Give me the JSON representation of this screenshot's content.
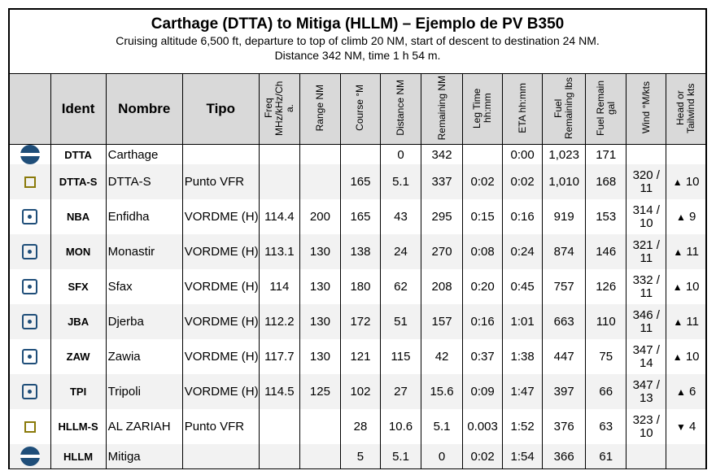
{
  "header": {
    "title": "Carthage (DTTA) to Mitiga (HLLM) – Ejemplo de PV B350",
    "line1": "Cruising altitude 6,500 ft, departure to top of climb 20 NM, start of descent to destination 24 NM.",
    "line2": "Distance 342 NM, time 1 h 54 m."
  },
  "columns": {
    "ident": "Ident",
    "nombre": "Nombre",
    "tipo": "Tipo",
    "freq": "Freq MHz/kHz/Ch a.",
    "range": "Range NM",
    "course": "Course °M",
    "distance": "Distance NM",
    "remaining": "Remaining NM",
    "leg": "Leg Time hh:mm",
    "eta": "ETA hh:mm",
    "fuel_lbs": "Fuel Remaining lbs",
    "fuel_gal": "Fuel Remain gal",
    "wind": "Wind °M/kts",
    "headtail": "Head or Tailwind kts"
  },
  "rows": [
    {
      "icon": "airport-icon",
      "ident": "DTTA",
      "nombre": "Carthage",
      "tipo": "",
      "freq": "",
      "range": "",
      "course": "",
      "distance": "0",
      "remaining": "342",
      "leg": "",
      "eta": "0:00",
      "fuel_lbs": "1,023",
      "fuel_gal": "171",
      "wind_a": "",
      "wind_b": "",
      "dir": "",
      "wkts": ""
    },
    {
      "icon": "vfr-point-icon",
      "ident": "DTTA-S",
      "nombre": "DTTA-S",
      "tipo": "Punto VFR",
      "freq": "",
      "range": "",
      "course": "165",
      "distance": "5.1",
      "remaining": "337",
      "leg": "0:02",
      "eta": "0:02",
      "fuel_lbs": "1,010",
      "fuel_gal": "168",
      "wind_a": "320 /",
      "wind_b": "11",
      "dir": "▲",
      "wkts": "10"
    },
    {
      "icon": "vordme-icon",
      "ident": "NBA",
      "nombre": "Enfidha",
      "tipo": "VORDME (H)",
      "freq": "114.4",
      "range": "200",
      "course": "165",
      "distance": "43",
      "remaining": "295",
      "leg": "0:15",
      "eta": "0:16",
      "fuel_lbs": "919",
      "fuel_gal": "153",
      "wind_a": "314 /",
      "wind_b": "10",
      "dir": "▲",
      "wkts": "9"
    },
    {
      "icon": "vordme-icon",
      "ident": "MON",
      "nombre": "Monastir",
      "tipo": "VORDME (H)",
      "freq": "113.1",
      "range": "130",
      "course": "138",
      "distance": "24",
      "remaining": "270",
      "leg": "0:08",
      "eta": "0:24",
      "fuel_lbs": "874",
      "fuel_gal": "146",
      "wind_a": "321 /",
      "wind_b": "11",
      "dir": "▲",
      "wkts": "11"
    },
    {
      "icon": "vordme-icon",
      "ident": "SFX",
      "nombre": "Sfax",
      "tipo": "VORDME (H)",
      "freq": "114",
      "range": "130",
      "course": "180",
      "distance": "62",
      "remaining": "208",
      "leg": "0:20",
      "eta": "0:45",
      "fuel_lbs": "757",
      "fuel_gal": "126",
      "wind_a": "332 /",
      "wind_b": "11",
      "dir": "▲",
      "wkts": "10"
    },
    {
      "icon": "vordme-icon",
      "ident": "JBA",
      "nombre": "Djerba",
      "tipo": "VORDME (H)",
      "freq": "112.2",
      "range": "130",
      "course": "172",
      "distance": "51",
      "remaining": "157",
      "leg": "0:16",
      "eta": "1:01",
      "fuel_lbs": "663",
      "fuel_gal": "110",
      "wind_a": "346 /",
      "wind_b": "11",
      "dir": "▲",
      "wkts": "11"
    },
    {
      "icon": "vordme-icon",
      "ident": "ZAW",
      "nombre": "Zawia",
      "tipo": "VORDME (H)",
      "freq": "117.7",
      "range": "130",
      "course": "121",
      "distance": "115",
      "remaining": "42",
      "leg": "0:37",
      "eta": "1:38",
      "fuel_lbs": "447",
      "fuel_gal": "75",
      "wind_a": "347 /",
      "wind_b": "14",
      "dir": "▲",
      "wkts": "10"
    },
    {
      "icon": "vordme-icon",
      "ident": "TPI",
      "nombre": "Tripoli",
      "tipo": "VORDME (H)",
      "freq": "114.5",
      "range": "125",
      "course": "102",
      "distance": "27",
      "remaining": "15.6",
      "leg": "0:09",
      "eta": "1:47",
      "fuel_lbs": "397",
      "fuel_gal": "66",
      "wind_a": "347 /",
      "wind_b": "13",
      "dir": "▲",
      "wkts": "6"
    },
    {
      "icon": "vfr-point-icon",
      "ident": "HLLM-S",
      "nombre": "AL ZARIAH",
      "tipo": "Punto VFR",
      "freq": "",
      "range": "",
      "course": "28",
      "distance": "10.6",
      "remaining": "5.1",
      "leg": "0.003",
      "eta": "1:52",
      "fuel_lbs": "376",
      "fuel_gal": "63",
      "wind_a": "323 /",
      "wind_b": "10",
      "dir": "▼",
      "wkts": "4"
    },
    {
      "icon": "airport-icon",
      "ident": "HLLM",
      "nombre": "Mitiga",
      "tipo": "",
      "freq": "",
      "range": "",
      "course": "5",
      "distance": "5.1",
      "remaining": "0",
      "leg": "0:02",
      "eta": "1:54",
      "fuel_lbs": "366",
      "fuel_gal": "61",
      "wind_a": "",
      "wind_b": "",
      "dir": "",
      "wkts": ""
    }
  ]
}
